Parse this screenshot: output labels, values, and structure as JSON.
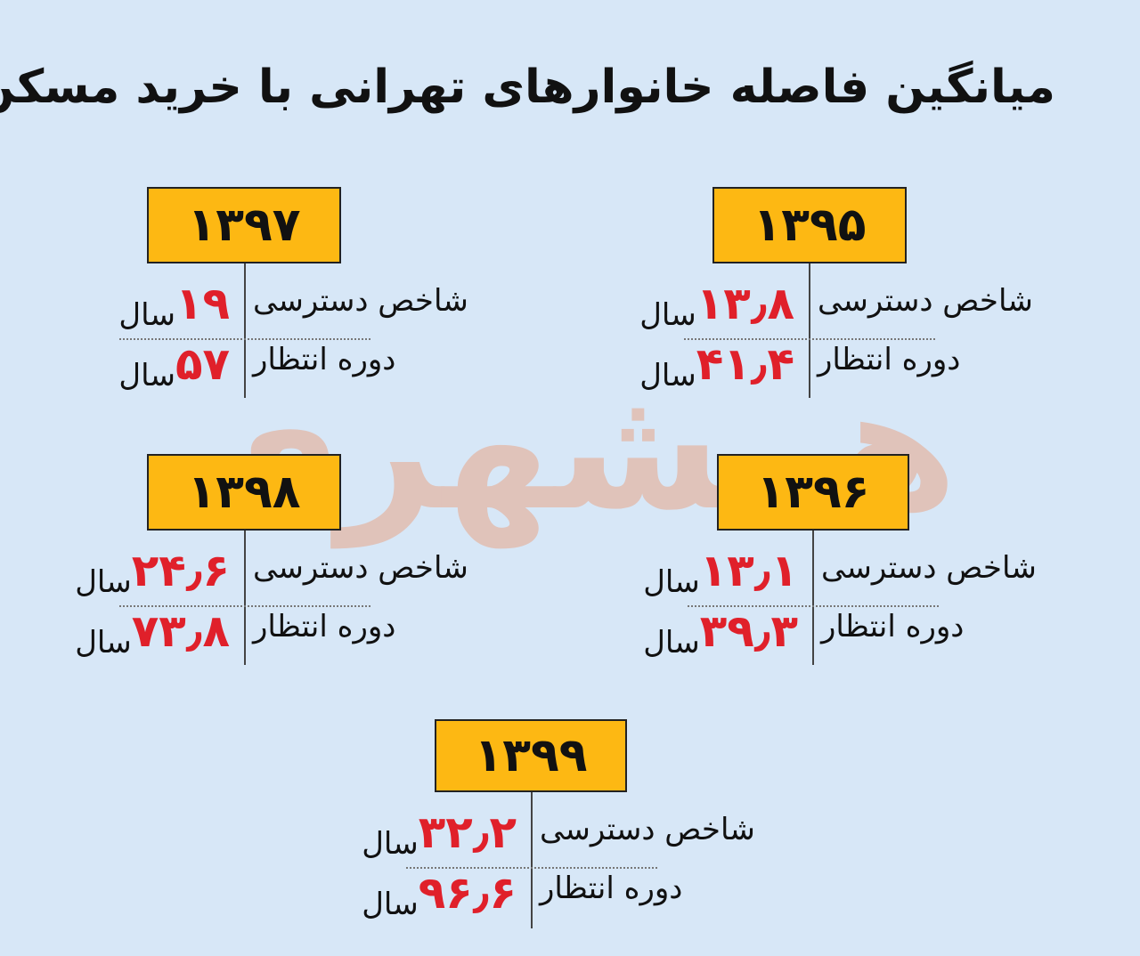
{
  "title": "میانگین فاصله خانوارهای تهرانی با خرید مسکن",
  "watermark": "همشهری",
  "panels": [
    {
      "year": "۱۳۹۵",
      "rows": [
        {
          "label": "شاخص دسترسی",
          "value": "۱۳٫۸",
          "unit": "سال"
        },
        {
          "label": "دوره انتظار",
          "value": "۴۱٫۴",
          "unit": "سال"
        }
      ]
    },
    {
      "year": "۱۳۹۷",
      "rows": [
        {
          "label": "شاخص دسترسی",
          "value": "۱۹",
          "unit": "سال"
        },
        {
          "label": "دوره انتظار",
          "value": "۵۷",
          "unit": "سال"
        }
      ]
    },
    {
      "year": "۱۳۹۶",
      "rows": [
        {
          "label": "شاخص دسترسی",
          "value": "۱۳٫۱",
          "unit": "سال"
        },
        {
          "label": "دوره انتظار",
          "value": "۳۹٫۳",
          "unit": "سال"
        }
      ]
    },
    {
      "year": "۱۳۹۸",
      "rows": [
        {
          "label": "شاخص دسترسی",
          "value": "۲۴٫۶",
          "unit": "سال"
        },
        {
          "label": "دوره انتظار",
          "value": "۷۳٫۸",
          "unit": "سال"
        }
      ]
    },
    {
      "year": "۱۳۹۹",
      "rows": [
        {
          "label": "شاخص دسترسی",
          "value": "۳۲٫۲",
          "unit": "سال"
        },
        {
          "label": "دوره انتظار",
          "value": "۹۶٫۶",
          "unit": "سال"
        }
      ]
    }
  ]
}
